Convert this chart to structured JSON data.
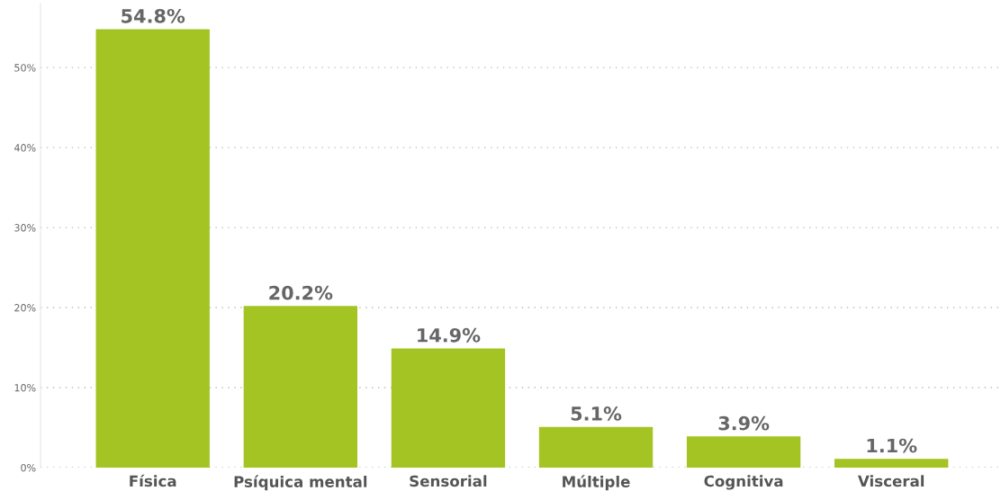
{
  "chart_data": {
    "type": "bar",
    "categories": [
      "Física",
      "Psíquica mental",
      "Sensorial",
      "Múltiple",
      "Cognitiva",
      "Visceral"
    ],
    "values": [
      54.8,
      20.2,
      14.9,
      5.1,
      3.9,
      1.1
    ],
    "value_labels": [
      "54.8%",
      "20.2%",
      "14.9%",
      "5.1%",
      "3.9%",
      "1.1%"
    ],
    "color": "#a3c423",
    "ylim": [
      0,
      58
    ],
    "yticks": [
      {
        "value": 0,
        "label": "0%"
      },
      {
        "value": 10,
        "label": "10%"
      },
      {
        "value": 20,
        "label": "20%"
      },
      {
        "value": 30,
        "label": "30%"
      },
      {
        "value": 40,
        "label": "40%"
      },
      {
        "value": 50,
        "label": "50%"
      }
    ],
    "grid": "y",
    "legend": false
  }
}
